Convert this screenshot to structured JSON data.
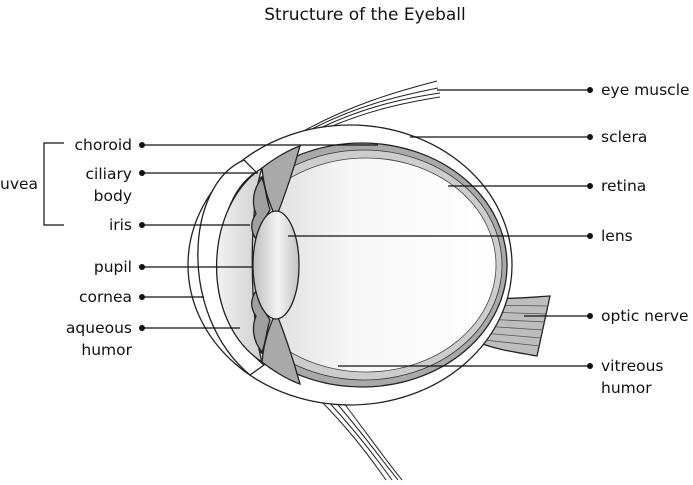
{
  "title": "Structure of the Eyeball",
  "group_label": "uvea",
  "labels_left": {
    "choroid": "choroid",
    "ciliary_body_1": "ciliary",
    "ciliary_body_2": "body",
    "iris": "iris",
    "pupil": "pupil",
    "cornea": "cornea",
    "aqueous_humor_1": "aqueous",
    "aqueous_humor_2": "humor"
  },
  "labels_right": {
    "eye_muscle": "eye muscle",
    "sclera": "sclera",
    "retina": "retina",
    "lens": "lens",
    "optic_nerve": "optic nerve",
    "vitreous_humor_1": "vitreous",
    "vitreous_humor_2": "humor"
  },
  "colors": {
    "sclera_fill": "#ffffff",
    "choroid_fill": "#a9a9a9",
    "retina_fill": "#c9c9c9",
    "interior_fill": "#ececec",
    "lens_fill": "#d4d4d4",
    "aqueous_fill": "#e2e2e2",
    "optic_nerve_fill": "#bdbdbd",
    "line": "#111111"
  }
}
